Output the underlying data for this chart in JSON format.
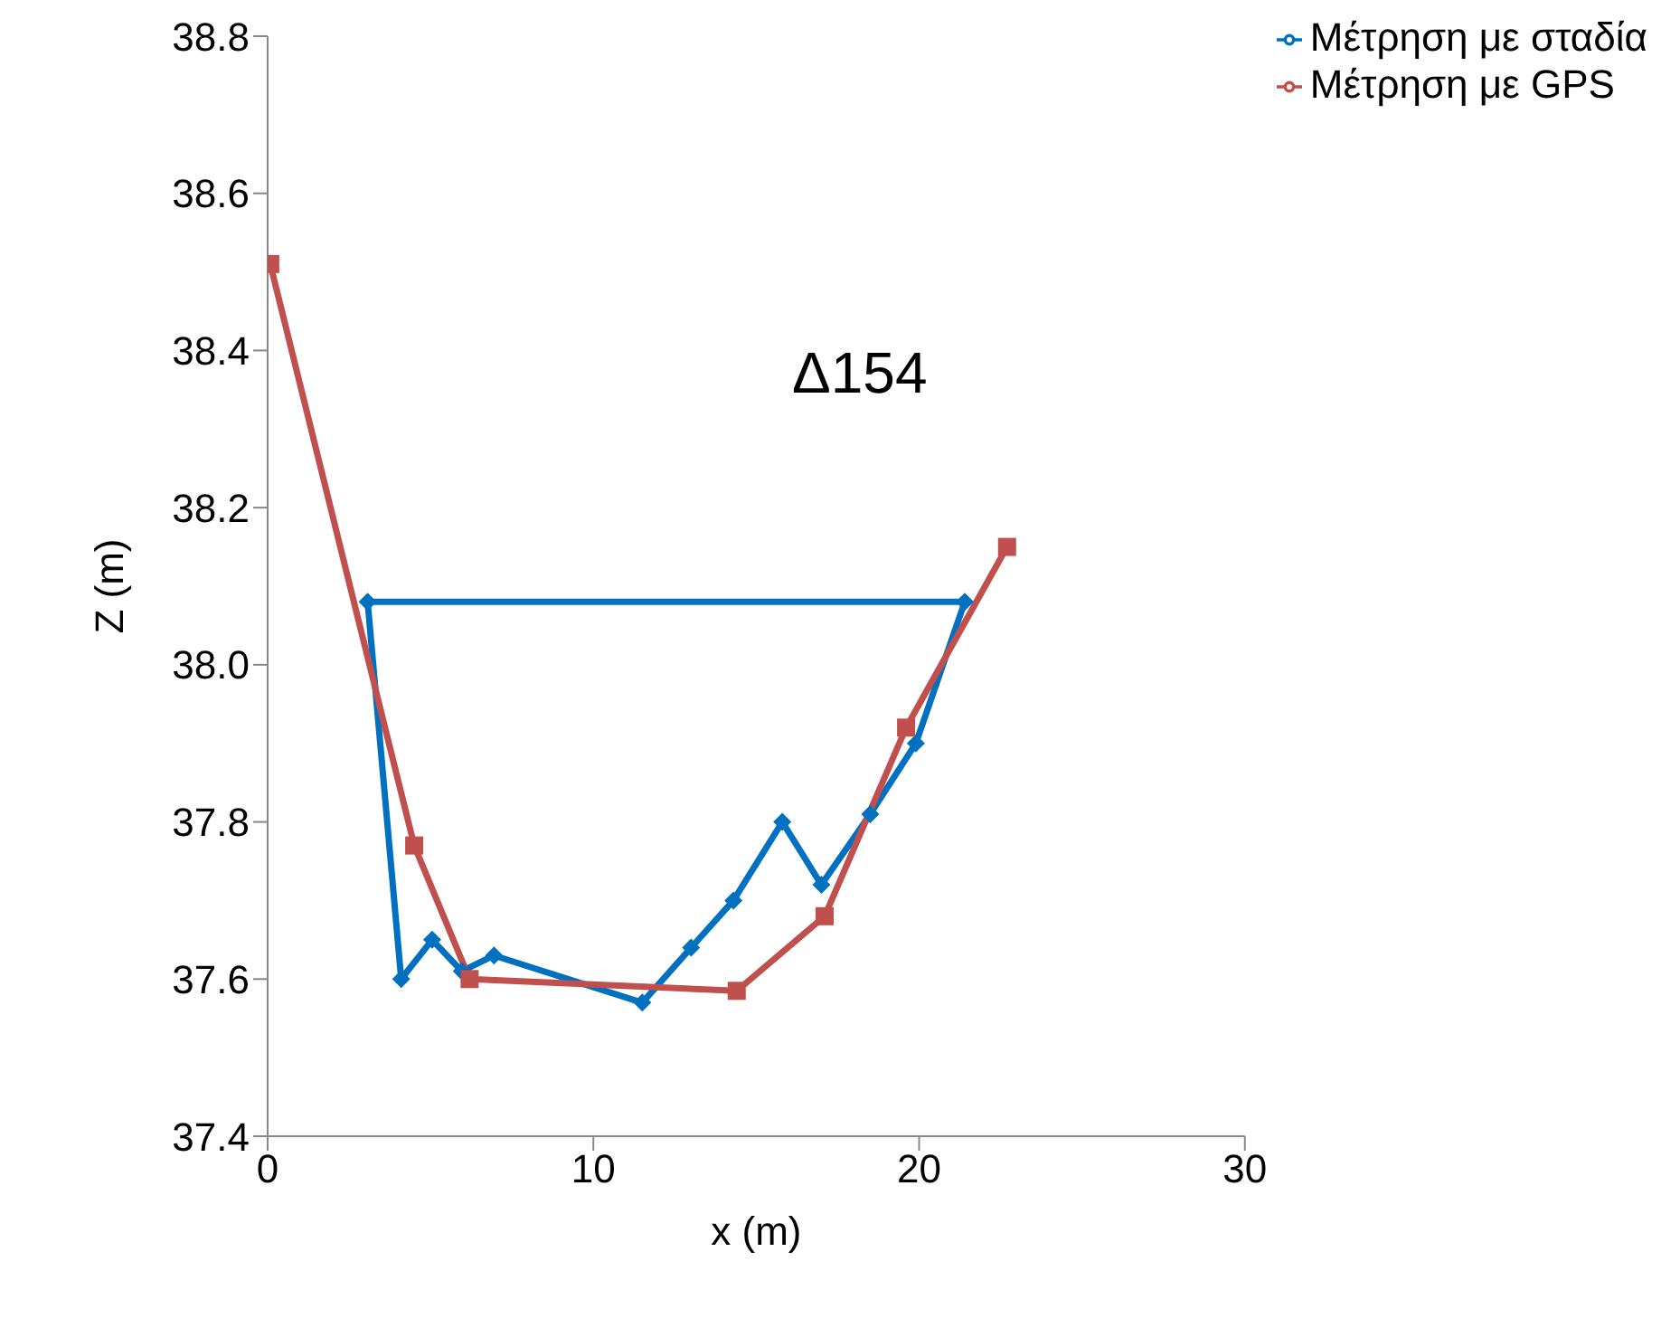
{
  "chart_data": {
    "type": "line",
    "title": "Δ154",
    "xlabel": "x (m)",
    "ylabel": "Z (m)",
    "xlim": [
      0,
      30
    ],
    "xticks": [
      0,
      10,
      20,
      30
    ],
    "ylim": [
      37.4,
      38.8
    ],
    "yticks": [
      {
        "value": 37.4,
        "label": "37.4"
      },
      {
        "value": 37.6,
        "label": "37.6"
      },
      {
        "value": 37.8,
        "label": "37.8"
      },
      {
        "value": 38.0,
        "label": "38.0"
      },
      {
        "value": 38.2,
        "label": "38.2"
      },
      {
        "value": 38.4,
        "label": "38.4"
      },
      {
        "value": 38.6,
        "label": "38.6"
      },
      {
        "value": 38.8,
        "label": "38.8"
      }
    ],
    "grid": false,
    "legend": "top right",
    "line_style": "solid",
    "series": [
      {
        "name": "Μέτρηση με σταδία",
        "color": "#0070c0",
        "marker": "diamond",
        "x": [
          3.07,
          4.1,
          5.05,
          5.96,
          6.95,
          11.5,
          13.0,
          14.3,
          15.8,
          17.0,
          18.5,
          19.9,
          21.4
        ],
        "values": [
          38.08,
          37.6,
          37.65,
          37.61,
          37.63,
          37.57,
          37.64,
          37.7,
          37.8,
          37.72,
          37.81,
          37.9,
          38.08
        ]
      },
      {
        "color": "#0070c0",
        "marker": "none",
        "x": [
          3.07,
          21.4
        ],
        "values": [
          38.08,
          38.08
        ]
      },
      {
        "name": "Μέτρηση με GPS",
        "color": "#c0504d",
        "marker": "square",
        "x": [
          0.08,
          4.5,
          6.2,
          14.4,
          17.1,
          19.6,
          22.7
        ],
        "values": [
          38.51,
          37.77,
          37.6,
          37.585,
          37.68,
          37.92,
          38.15
        ]
      }
    ]
  }
}
